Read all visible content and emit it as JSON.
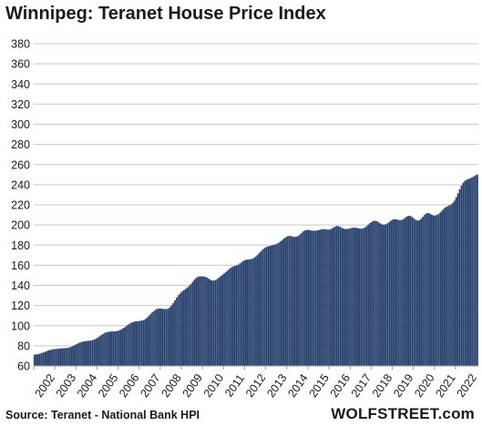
{
  "chart_data": {
    "type": "bar",
    "title": "Winnipeg: Teranet House Price Index",
    "xlabel": "",
    "ylabel": "",
    "ylim": [
      60,
      390
    ],
    "yticks": [
      60,
      80,
      100,
      120,
      140,
      160,
      180,
      200,
      220,
      240,
      260,
      280,
      300,
      320,
      340,
      360,
      380
    ],
    "xticks": [
      "2002",
      "2003",
      "2004",
      "2005",
      "2006",
      "2007",
      "2008",
      "2009",
      "2010",
      "2011",
      "2012",
      "2013",
      "2014",
      "2015",
      "2016",
      "2017",
      "2018",
      "2019",
      "2020",
      "2021",
      "2022"
    ],
    "grid": true,
    "x_start": "2002-01",
    "frequency": "monthly",
    "series": [
      {
        "values": [
          71.0,
          71.3,
          71.6,
          72.0,
          72.6,
          73.2,
          73.9,
          74.6,
          75.3,
          75.8,
          76.2,
          76.5,
          76.7,
          76.9,
          77.1,
          77.3,
          77.4,
          77.5,
          77.7,
          78.0,
          78.4,
          79.0,
          79.7,
          80.6,
          81.5,
          82.4,
          83.2,
          83.8,
          84.2,
          84.5,
          84.7,
          84.9,
          85.1,
          85.5,
          86.1,
          87.0,
          88.0,
          89.2,
          90.5,
          91.7,
          92.7,
          93.4,
          93.8,
          94.0,
          94.1,
          94.2,
          94.3,
          94.5,
          95.0,
          95.7,
          96.7,
          97.9,
          99.2,
          100.5,
          101.7,
          102.7,
          103.4,
          103.9,
          104.2,
          104.4,
          104.6,
          104.9,
          105.4,
          106.3,
          107.6,
          109.3,
          111.2,
          113.0,
          114.6,
          115.8,
          116.6,
          116.9,
          116.9,
          116.6,
          116.4,
          116.4,
          116.9,
          118.0,
          119.8,
          122.3,
          125.1,
          127.9,
          130.3,
          132.2,
          133.8,
          135.1,
          136.4,
          137.8,
          139.4,
          141.3,
          143.4,
          145.5,
          147.2,
          148.3,
          148.8,
          148.9,
          148.8,
          148.5,
          147.8,
          146.7,
          145.5,
          144.7,
          144.6,
          145.2,
          146.3,
          147.6,
          149.0,
          150.4,
          151.8,
          153.3,
          154.9,
          156.4,
          157.7,
          158.6,
          159.2,
          159.8,
          160.6,
          161.8,
          163.1,
          164.3,
          165.1,
          165.5,
          165.7,
          165.9,
          166.4,
          167.3,
          168.6,
          170.3,
          172.2,
          174.1,
          175.8,
          177.1,
          178.1,
          178.7,
          179.2,
          179.6,
          180.0,
          180.5,
          181.3,
          182.3,
          183.6,
          185.0,
          186.5,
          187.8,
          188.7,
          189.1,
          188.9,
          188.4,
          188.0,
          188.1,
          188.9,
          190.3,
          192.0,
          193.6,
          194.6,
          195.0,
          194.9,
          194.6,
          194.3,
          194.2,
          194.3,
          194.6,
          195.0,
          195.4,
          195.7,
          195.8,
          195.6,
          195.3,
          195.4,
          196.1,
          197.2,
          198.3,
          198.9,
          198.8,
          198.0,
          197.0,
          196.2,
          195.9,
          196.0,
          196.3,
          196.7,
          197.1,
          197.3,
          197.1,
          196.7,
          196.3,
          196.2,
          196.6,
          197.5,
          198.8,
          200.3,
          201.9,
          203.2,
          204.0,
          204.1,
          203.5,
          202.4,
          201.2,
          200.4,
          200.2,
          200.7,
          201.7,
          203.0,
          204.3,
          205.3,
          205.7,
          205.5,
          205.0,
          204.7,
          205.0,
          205.9,
          207.2,
          208.4,
          209.0,
          208.8,
          207.8,
          206.3,
          205.0,
          204.3,
          204.6,
          206.0,
          208.0,
          210.1,
          211.5,
          211.8,
          211.1,
          210.2,
          209.5,
          209.4,
          209.9,
          210.9,
          212.4,
          214.2,
          216.0,
          217.5,
          218.5,
          219.3,
          220.2,
          221.7,
          224.1,
          227.4,
          231.3,
          235.4,
          239.1,
          242.0,
          243.9,
          244.9,
          245.6,
          246.3,
          247.2,
          248.3,
          249.3,
          250.0
        ]
      }
    ]
  },
  "footer": {
    "source": "Source: Teranet - National Bank HPI",
    "brand": "WOLFSTREET.com"
  },
  "colors": {
    "bar_fill": "#1f3864",
    "bar_stroke": "#5a6f9a",
    "grid": "#c9c9c9",
    "axis": "#9a9a9a",
    "text": "#1a1a1a"
  }
}
